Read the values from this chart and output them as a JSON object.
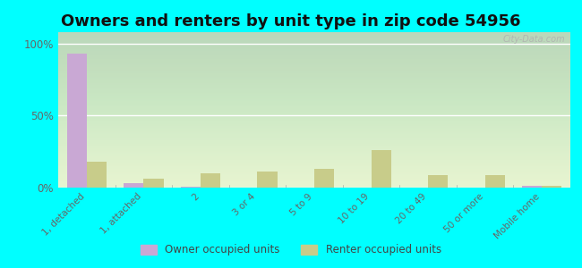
{
  "title": "Owners and renters by unit type in zip code 54956",
  "categories": [
    "1, detached",
    "1, attached",
    "2",
    "3 or 4",
    "5 to 9",
    "10 to 19",
    "20 to 49",
    "50 or more",
    "Mobile home"
  ],
  "owner_values": [
    93,
    3,
    0.5,
    0,
    0,
    0,
    0,
    0,
    1
  ],
  "renter_values": [
    18,
    6,
    10,
    11,
    13,
    26,
    9,
    9,
    1
  ],
  "owner_color": "#c9a8d4",
  "renter_color": "#c8cc8a",
  "outer_bg": "#00ffff",
  "plot_bg_top": "#d8edb0",
  "plot_bg_bottom": "#f0f8e0",
  "ylabel_ticks": [
    "0%",
    "50%",
    "100%"
  ],
  "yticks": [
    0,
    50,
    100
  ],
  "ylim": [
    0,
    108
  ],
  "bar_width": 0.35,
  "title_fontsize": 13,
  "legend_owner": "Owner occupied units",
  "legend_renter": "Renter occupied units",
  "watermark": "City-Data.com"
}
